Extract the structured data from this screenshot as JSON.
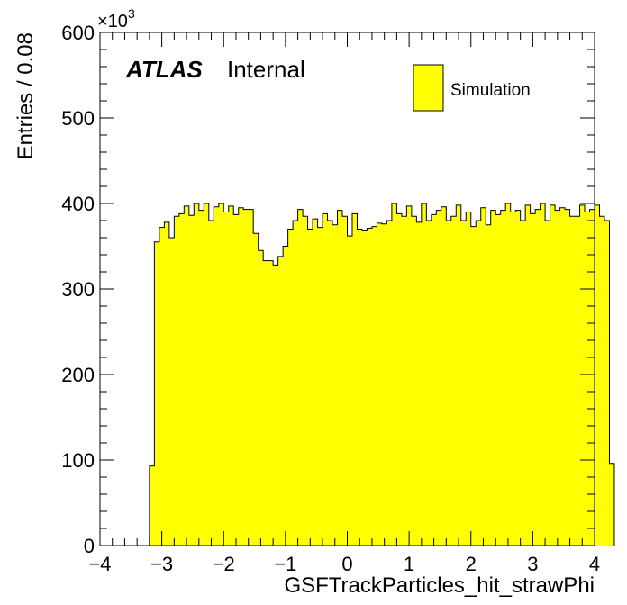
{
  "chart_data": {
    "type": "bar",
    "histogram": true,
    "xlabel": "GSFTrackParticles_hit_strawPhi",
    "ylabel": "Entries / 0.08",
    "xlim": [
      -4,
      4
    ],
    "ylim": [
      0,
      600
    ],
    "y_multiplier": {
      "base": "×10",
      "exponent": "3"
    },
    "xticks": [
      -4,
      -3,
      -2,
      -1,
      0,
      1,
      2,
      3,
      4
    ],
    "xtick_labels": [
      "−4",
      "−3",
      "−2",
      "−1",
      "0",
      "1",
      "2",
      "3",
      "4"
    ],
    "yticks": [
      0,
      100,
      200,
      300,
      400,
      500,
      600
    ],
    "ytick_labels": [
      "0",
      "100",
      "200",
      "300",
      "400",
      "500",
      "600"
    ],
    "bin_start": -3.2,
    "bin_width": 0.08,
    "values": [
      93,
      355,
      372,
      378,
      360,
      385,
      388,
      397,
      386,
      400,
      392,
      400,
      380,
      396,
      400,
      390,
      397,
      387,
      395,
      393,
      393,
      365,
      345,
      333,
      333,
      328,
      338,
      350,
      370,
      380,
      393,
      385,
      370,
      382,
      372,
      388,
      380,
      375,
      392,
      385,
      362,
      388,
      370,
      368,
      371,
      373,
      377,
      376,
      380,
      400,
      388,
      385,
      397,
      385,
      378,
      400,
      380,
      387,
      392,
      396,
      380,
      385,
      398,
      380,
      390,
      373,
      380,
      395,
      375,
      392,
      387,
      392,
      400,
      390,
      392,
      380,
      398,
      388,
      393,
      400,
      380,
      398,
      392,
      395,
      393,
      385,
      385,
      398,
      390,
      393,
      398,
      385,
      380,
      96
    ],
    "fill_color": "#ffff00",
    "line_color": "#000000",
    "legend": {
      "entries": [
        "Simulation"
      ],
      "placement": "top-right"
    },
    "annotations": {
      "experiment": "ATLAS",
      "status": "Internal"
    },
    "grid": false
  }
}
